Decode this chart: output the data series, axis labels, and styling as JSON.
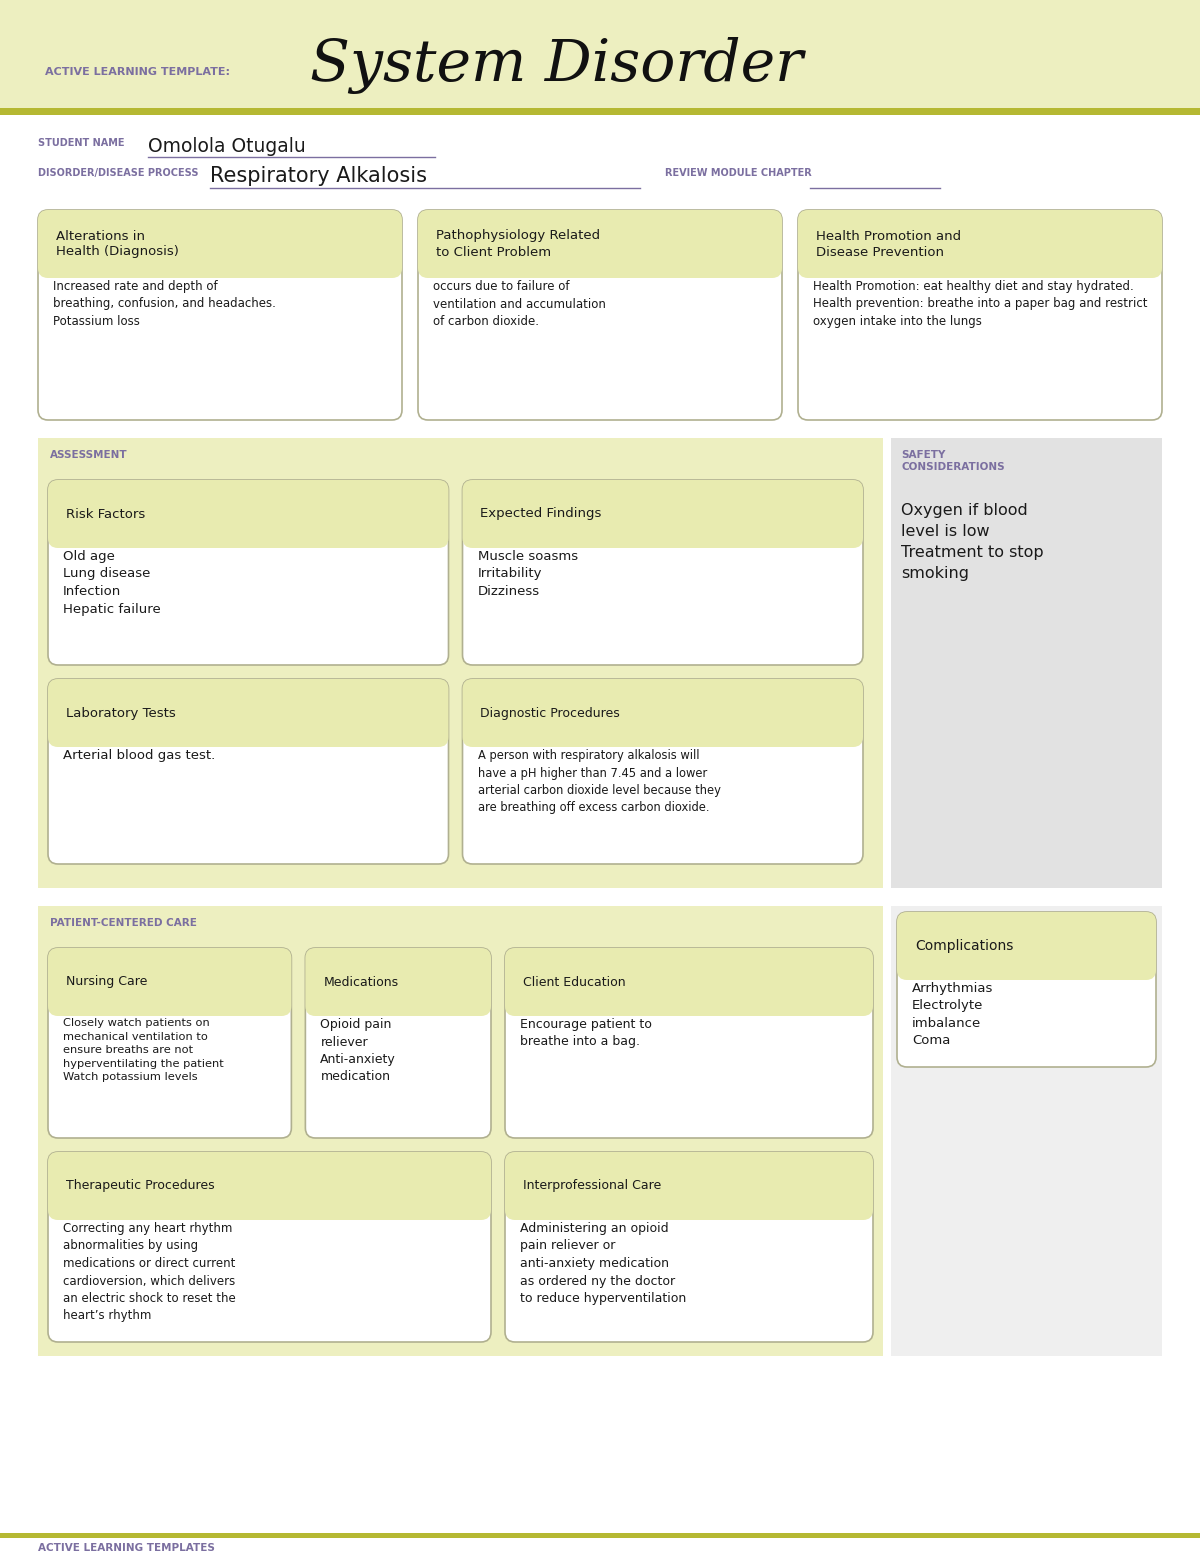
{
  "white": "#ffffff",
  "header_bg": "#edefc0",
  "olive_stripe": "#b5b832",
  "light_yellow_box": "#e8ebb0",
  "light_gray_section": "#e2e2e2",
  "complication_bg": "#efefef",
  "purple_label": "#7b6fa0",
  "dark_text": "#1a1a1a",
  "box_edge": "#b0b090",
  "header_text": "ACTIVE LEARNING TEMPLATE:",
  "main_title": "System Disorder",
  "student_label": "STUDENT NAME",
  "student_name": "Omolola Otugalu",
  "disorder_label": "DISORDER/DISEASE PROCESS",
  "disorder_name": "Respiratory Alkalosis",
  "review_label": "REVIEW MODULE CHAPTER",
  "box1_title": "Alterations in\nHealth (Diagnosis)",
  "box1_body": "Increased rate and depth of\nbreathing, confusion, and headaches.\nPotassium loss",
  "box2_title": "Pathophysiology Related\nto Client Problem",
  "box2_body": "occurs due to failure of\nventilation and accumulation\nof carbon dioxide.",
  "box3_title": "Health Promotion and\nDisease Prevention",
  "box3_body": "Health Promotion: eat healthy diet and stay hydrated.\nHealth prevention: breathe into a paper bag and restrict\noxygen intake into the lungs",
  "assess_label": "ASSESSMENT",
  "safety_label": "SAFETY\nCONSIDERATIONS",
  "safety_body": "Oxygen if blood\nlevel is low\nTreatment to stop\nsmoking",
  "risk_title": "Risk Factors",
  "risk_body": "Old age\nLung disease\nInfection\nHepatic failure",
  "expected_title": "Expected Findings",
  "expected_body": "Muscle soasms\nIrritability\nDizziness",
  "lab_title": "Laboratory Tests",
  "lab_body": "Arterial blood gas test.",
  "diag_title": "Diagnostic Procedures",
  "diag_body": "A person with respiratory alkalosis will\nhave a pH higher than 7.45 and a lower\narterial carbon dioxide level because they\nare breathing off excess carbon dioxide.",
  "patient_label": "PATIENT-CENTERED CARE",
  "complications_title": "Complications",
  "complications_body": "Arrhythmias\nElectrolyte\nimbalance\nComa",
  "nursing_title": "Nursing Care",
  "nursing_body": "Closely watch patients on\nmechanical ventilation to\nensure breaths are not\nhyperventilating the patient\nWatch potassium levels",
  "meds_title": "Medications",
  "meds_body": "Opioid pain\nreliever\nAnti-anxiety\nmedication",
  "client_title": "Client Education",
  "client_body": "Encourage patient to\nbreathe into a bag.",
  "therapeutic_title": "Therapeutic Procedures",
  "therapeutic_body": "Correcting any heart rhythm\nabnormalities by using\nmedications or direct current\ncardioversion, which delivers\nan electric shock to reset the\nheart’s rhythm",
  "interpro_title": "Interprofessional Care",
  "interpro_body": "Administering an opioid\npain reliever or\nanti-anxiety medication\nas ordered ny the doctor\nto reduce hyperventilation",
  "footer_text": "ACTIVE LEARNING TEMPLATES"
}
